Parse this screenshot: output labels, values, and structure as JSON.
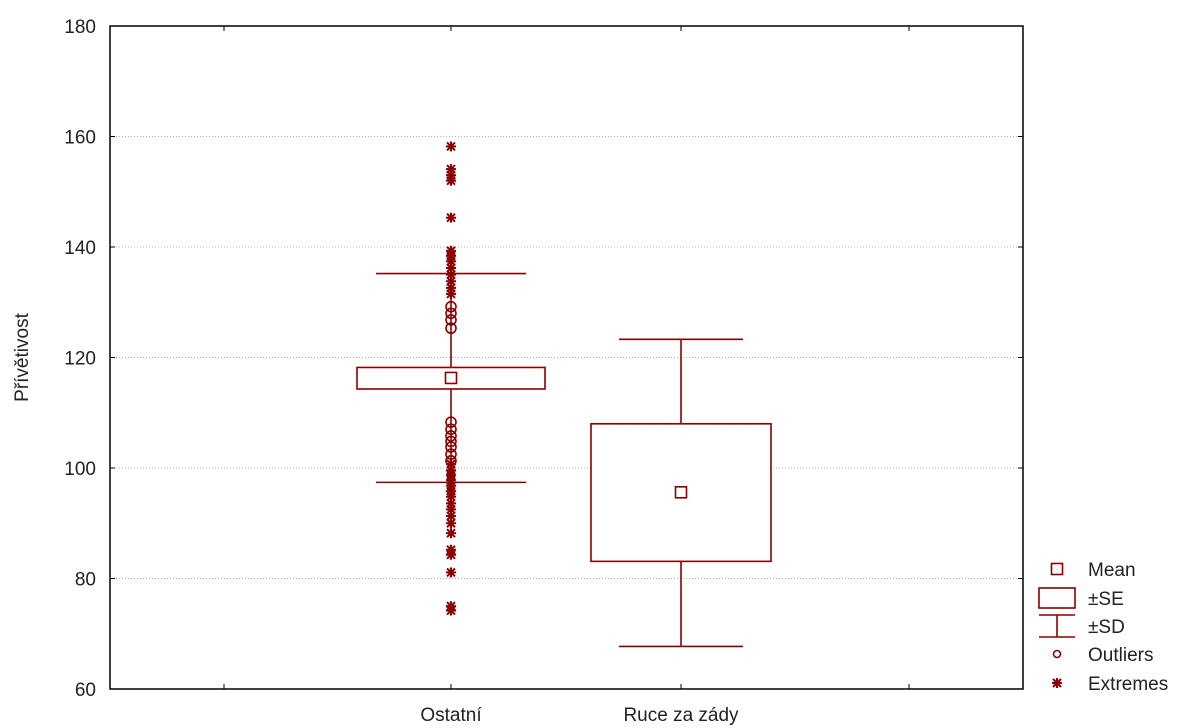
{
  "chart_data": {
    "type": "box",
    "title": "",
    "xlabel": "",
    "ylabel": "Přívětivost",
    "ylim": [
      60,
      180
    ],
    "yticks": [
      60,
      80,
      100,
      120,
      140,
      160,
      180
    ],
    "grid": true,
    "legend_position": "bottom-right outside",
    "colors": {
      "series": "#8b0000",
      "grid": "#b0b0b0",
      "axis": "#000000"
    },
    "categories": [
      "Ostatní",
      "Ruce za zády"
    ],
    "groups": [
      {
        "name": "Ostatní",
        "mean": 116.3,
        "se_low": 114.3,
        "se_high": 118.2,
        "sd_low": 97.4,
        "sd_high": 135.2,
        "outliers": [
          125.3,
          126.8,
          128.0,
          129.2,
          101.3,
          102.5,
          103.8,
          104.8,
          105.8,
          107.0,
          108.3
        ],
        "extremes": [
          158.2,
          154.1,
          153.0,
          152.0,
          145.3,
          139.3,
          138.4,
          137.4,
          136.2,
          135.0,
          133.8,
          132.6,
          131.5,
          100.7,
          99.6,
          98.7,
          97.8,
          96.8,
          95.8,
          94.8,
          93.6,
          92.5,
          91.3,
          90.0,
          88.2,
          85.2,
          84.3,
          81.1,
          75.0,
          74.2
        ]
      },
      {
        "name": "Ruce za zády",
        "mean": 95.6,
        "se_low": 83.1,
        "se_high": 108.0,
        "sd_low": 67.7,
        "sd_high": 123.3,
        "outliers": [],
        "extremes": []
      }
    ],
    "legend": [
      {
        "key": "mean",
        "label": "Mean"
      },
      {
        "key": "se",
        "label": "±SE"
      },
      {
        "key": "sd",
        "label": "±SD"
      },
      {
        "key": "outlier",
        "label": "Outliers"
      },
      {
        "key": "extreme",
        "label": "Extremes"
      }
    ]
  }
}
